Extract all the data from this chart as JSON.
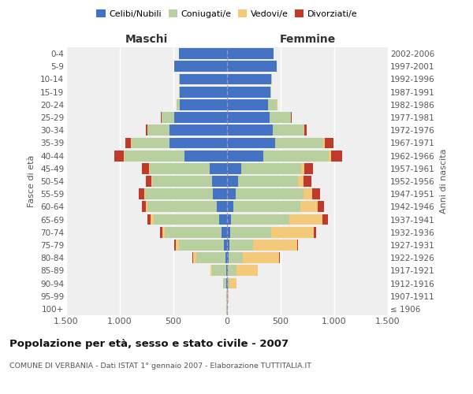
{
  "age_groups": [
    "100+",
    "95-99",
    "90-94",
    "85-89",
    "80-84",
    "75-79",
    "70-74",
    "65-69",
    "60-64",
    "55-59",
    "50-54",
    "45-49",
    "40-44",
    "35-39",
    "30-34",
    "25-29",
    "20-24",
    "15-19",
    "10-14",
    "5-9",
    "0-4"
  ],
  "birth_years": [
    "≤ 1906",
    "1907-1911",
    "1912-1916",
    "1917-1921",
    "1922-1926",
    "1927-1931",
    "1932-1936",
    "1937-1941",
    "1942-1946",
    "1947-1951",
    "1952-1956",
    "1957-1961",
    "1962-1966",
    "1967-1971",
    "1972-1976",
    "1977-1981",
    "1982-1986",
    "1987-1991",
    "1992-1996",
    "1997-2001",
    "2002-2006"
  ],
  "males": {
    "celibi": [
      2,
      3,
      5,
      10,
      15,
      30,
      50,
      70,
      95,
      130,
      140,
      165,
      400,
      540,
      540,
      490,
      440,
      440,
      440,
      490,
      450
    ],
    "coniugati": [
      2,
      5,
      30,
      130,
      270,
      420,
      530,
      615,
      645,
      635,
      555,
      555,
      555,
      350,
      200,
      120,
      30,
      5,
      5,
      0,
      0
    ],
    "vedovi": [
      0,
      0,
      5,
      15,
      30,
      30,
      25,
      25,
      15,
      10,
      10,
      5,
      5,
      5,
      3,
      2,
      0,
      0,
      0,
      0,
      0
    ],
    "divorziati": [
      0,
      0,
      0,
      0,
      5,
      15,
      20,
      30,
      40,
      50,
      55,
      70,
      95,
      55,
      15,
      5,
      0,
      0,
      0,
      0,
      0
    ]
  },
  "females": {
    "nubili": [
      2,
      3,
      5,
      10,
      15,
      20,
      30,
      40,
      60,
      80,
      100,
      135,
      335,
      450,
      425,
      395,
      385,
      405,
      415,
      465,
      435
    ],
    "coniugate": [
      2,
      5,
      20,
      80,
      130,
      220,
      380,
      540,
      625,
      635,
      565,
      555,
      615,
      450,
      290,
      200,
      80,
      10,
      5,
      0,
      0
    ],
    "vedove": [
      3,
      10,
      60,
      200,
      340,
      415,
      400,
      310,
      160,
      80,
      50,
      30,
      20,
      10,
      5,
      3,
      2,
      0,
      0,
      0,
      0
    ],
    "divorziate": [
      0,
      0,
      0,
      0,
      5,
      10,
      20,
      50,
      60,
      70,
      75,
      80,
      105,
      80,
      25,
      5,
      2,
      0,
      0,
      0,
      0
    ]
  },
  "colors": {
    "celibi": "#4472c4",
    "coniugati": "#b8cfa0",
    "vedovi": "#f5c97a",
    "divorziati": "#c0392b"
  },
  "xlim": 1500,
  "title": "Popolazione per età, sesso e stato civile - 2007",
  "subtitle": "COMUNE DI VERBANIA - Dati ISTAT 1° gennaio 2007 - Elaborazione TUTTITALIA.IT",
  "ylabel_left": "Fasce di età",
  "ylabel_right": "Anni di nascita",
  "xlabel_left": "Maschi",
  "xlabel_right": "Femmine"
}
